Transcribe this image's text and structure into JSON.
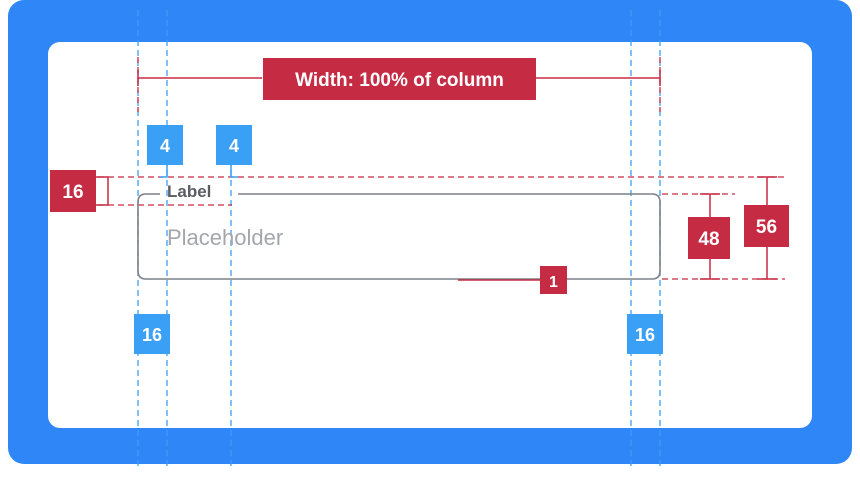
{
  "colors": {
    "frame": "#2f86f6",
    "card": "#ffffff",
    "spec_red": "#c62b44",
    "spec_blue": "#3aa0f5",
    "field_border": "#7d8088",
    "label_text": "#5a5d63",
    "placeholder_text": "#a3a6ab"
  },
  "annotations": {
    "width": "Width: 100% of column",
    "label_gap_left": "4",
    "label_gap_right": "4",
    "label_height": "16",
    "field_height": "48",
    "total_height": "56",
    "border_width": "1",
    "padding_left": "16",
    "padding_right": "16"
  },
  "text_field": {
    "label": "Label",
    "placeholder": "Placeholder"
  }
}
